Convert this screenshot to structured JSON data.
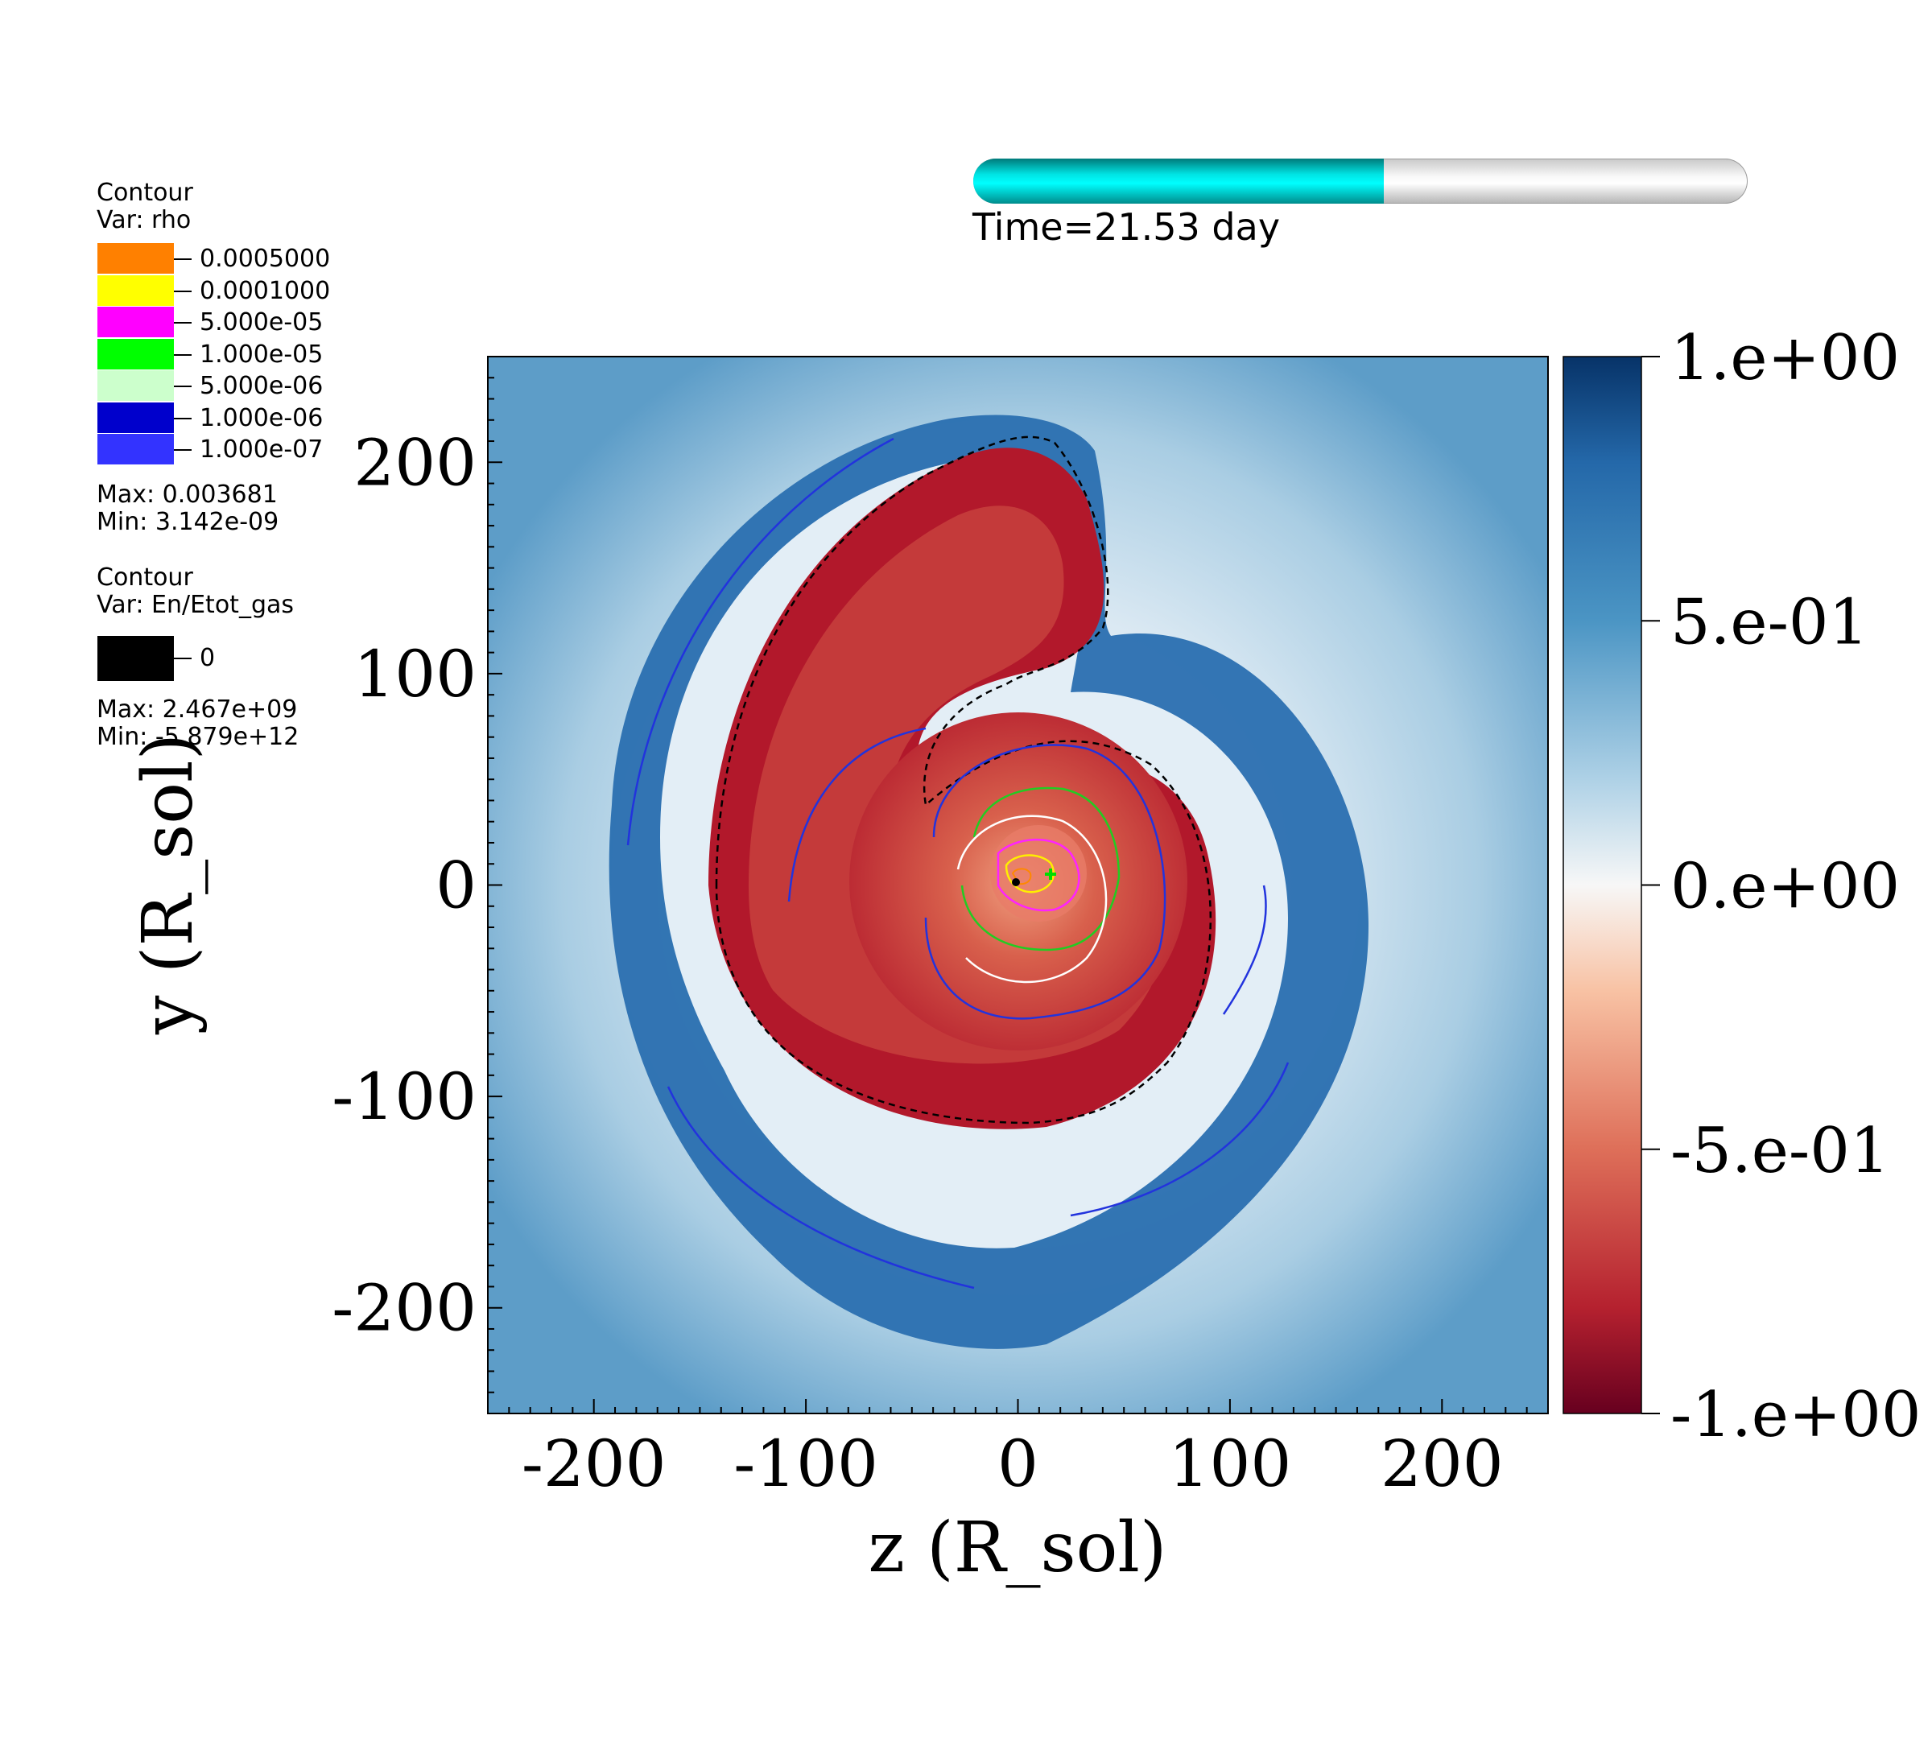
{
  "legend_rho": {
    "title": "Contour",
    "var": "Var: rho",
    "items": [
      {
        "label": "0.0005000",
        "color": "#ff8000"
      },
      {
        "label": "0.0001000",
        "color": "#ffff00"
      },
      {
        "label": "5.000e-05",
        "color": "#ff00ff"
      },
      {
        "label": "1.000e-05",
        "color": "#00ff00"
      },
      {
        "label": "5.000e-06",
        "color": "#ccffcc"
      },
      {
        "label": "1.000e-06",
        "color": "#0000cc"
      },
      {
        "label": "1.000e-07",
        "color": "#3333ff"
      }
    ],
    "max": "Max:  0.003681",
    "min": "Min:  3.142e-09"
  },
  "legend_energy": {
    "title": "Contour",
    "var": "Var: En/Etot_gas",
    "items": [
      {
        "label": "0",
        "color": "#000000"
      }
    ],
    "max": "Max:  2.467e+09",
    "min": "Min: -5.879e+12"
  },
  "time_slider": {
    "label": "Time=21.53 day",
    "progress_fraction": 0.53
  },
  "chart_data": {
    "type": "heatmap",
    "xlabel": "z (R_sol)",
    "ylabel": "y (R_sol)",
    "xlim": [
      -250,
      250
    ],
    "ylim": [
      -250,
      250
    ],
    "x_ticks": [
      -200,
      -100,
      0,
      100,
      200
    ],
    "x_tick_labels": [
      "-200",
      "-100",
      "0",
      "100",
      "200"
    ],
    "y_ticks": [
      200,
      100,
      0,
      -100,
      -200
    ],
    "y_tick_labels": [
      "200",
      "100",
      "0",
      "-100",
      "-200"
    ],
    "colorbar": {
      "range": [
        -1,
        1
      ],
      "colormap": "red-white-blue (negative red, positive blue)",
      "ticks": [
        1,
        0.5,
        0,
        -0.5,
        -1
      ],
      "tick_labels": [
        "1.e+00",
        "5.e-01",
        "0.e+00",
        "-5.e-01",
        "-1.e+00"
      ]
    },
    "markers": [
      {
        "name": "primary core",
        "x": 0,
        "y": 0,
        "color": "#000000"
      },
      {
        "name": "companion",
        "x": 15,
        "y": 5,
        "color": "#00cc00"
      }
    ],
    "grid": false
  }
}
